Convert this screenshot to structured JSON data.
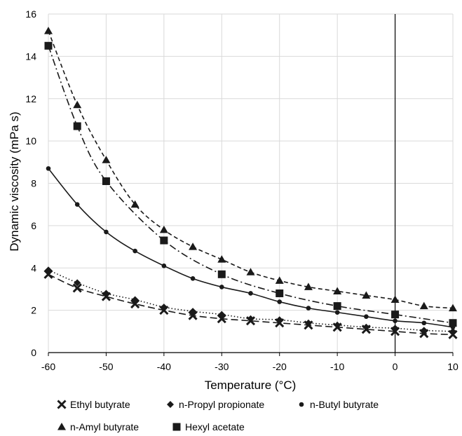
{
  "chart_data": {
    "type": "scatter",
    "title": "",
    "xlabel": "Temperature (°C)",
    "ylabel": "Dynamic viscosity (mPa s)",
    "xlim": [
      -60,
      10
    ],
    "ylim": [
      0,
      16
    ],
    "xticks": [
      -60,
      -50,
      -40,
      -30,
      -20,
      -10,
      0,
      10
    ],
    "yticks": [
      0,
      2,
      4,
      6,
      8,
      10,
      12,
      14,
      16
    ],
    "grid": true,
    "legend_position": "bottom",
    "x": [
      -60,
      -55,
      -50,
      -45,
      -40,
      -35,
      -30,
      -25,
      -20,
      -15,
      -10,
      -5,
      0,
      5,
      10
    ],
    "series": [
      {
        "name": "Ethyl butyrate",
        "marker": "x",
        "line_style": "long-dash",
        "color": "#1a1a1a",
        "x": [
          -60,
          -55,
          -50,
          -45,
          -40,
          -35,
          -30,
          -25,
          -20,
          -15,
          -10,
          -5,
          0,
          5,
          10
        ],
        "values": [
          3.7,
          3.05,
          2.65,
          2.3,
          2.0,
          1.75,
          1.6,
          1.5,
          1.4,
          1.3,
          1.2,
          1.1,
          1.0,
          0.9,
          0.85
        ]
      },
      {
        "name": "n-Propyl propionate",
        "marker": "diamond",
        "line_style": "dotted",
        "color": "#1a1a1a",
        "x": [
          -60,
          -55,
          -50,
          -45,
          -40,
          -35,
          -30,
          -25,
          -20,
          -15,
          -10,
          -5,
          0,
          5,
          10
        ],
        "values": [
          3.9,
          3.3,
          2.8,
          2.5,
          2.15,
          1.95,
          1.8,
          1.6,
          1.55,
          1.4,
          1.3,
          1.2,
          1.15,
          1.05,
          1.0
        ]
      },
      {
        "name": "n-Butyl butyrate",
        "marker": "circle",
        "line_style": "solid",
        "color": "#1a1a1a",
        "x": [
          -60,
          -55,
          -50,
          -45,
          -40,
          -35,
          -30,
          -25,
          -20,
          -15,
          -10,
          -5,
          0,
          5,
          10
        ],
        "values": [
          8.7,
          7.0,
          5.7,
          4.8,
          4.1,
          3.5,
          3.1,
          2.8,
          2.4,
          2.1,
          1.9,
          1.7,
          1.5,
          1.4,
          1.2
        ]
      },
      {
        "name": "n-Amyl butyrate",
        "marker": "triangle",
        "line_style": "short-dash",
        "color": "#1a1a1a",
        "x": [
          -60,
          -55,
          -50,
          -45,
          -40,
          -35,
          -30,
          -25,
          -20,
          -15,
          -10,
          -5,
          0,
          5,
          10
        ],
        "values": [
          15.2,
          11.7,
          9.1,
          7.0,
          5.8,
          5.0,
          4.4,
          3.8,
          3.4,
          3.1,
          2.9,
          2.7,
          2.5,
          2.2,
          2.1
        ]
      },
      {
        "name": "Hexyl acetate",
        "marker": "square",
        "line_style": "dash-dot",
        "color": "#1a1a1a",
        "x": [
          -60,
          -55,
          -50,
          -40,
          -30,
          -20,
          -10,
          0,
          10
        ],
        "values": [
          14.5,
          10.7,
          8.1,
          5.3,
          3.7,
          2.8,
          2.2,
          1.8,
          1.4
        ]
      }
    ]
  },
  "colors": {
    "gridline": "#d9d9d9",
    "axis": "#000000",
    "series": "#1a1a1a"
  }
}
